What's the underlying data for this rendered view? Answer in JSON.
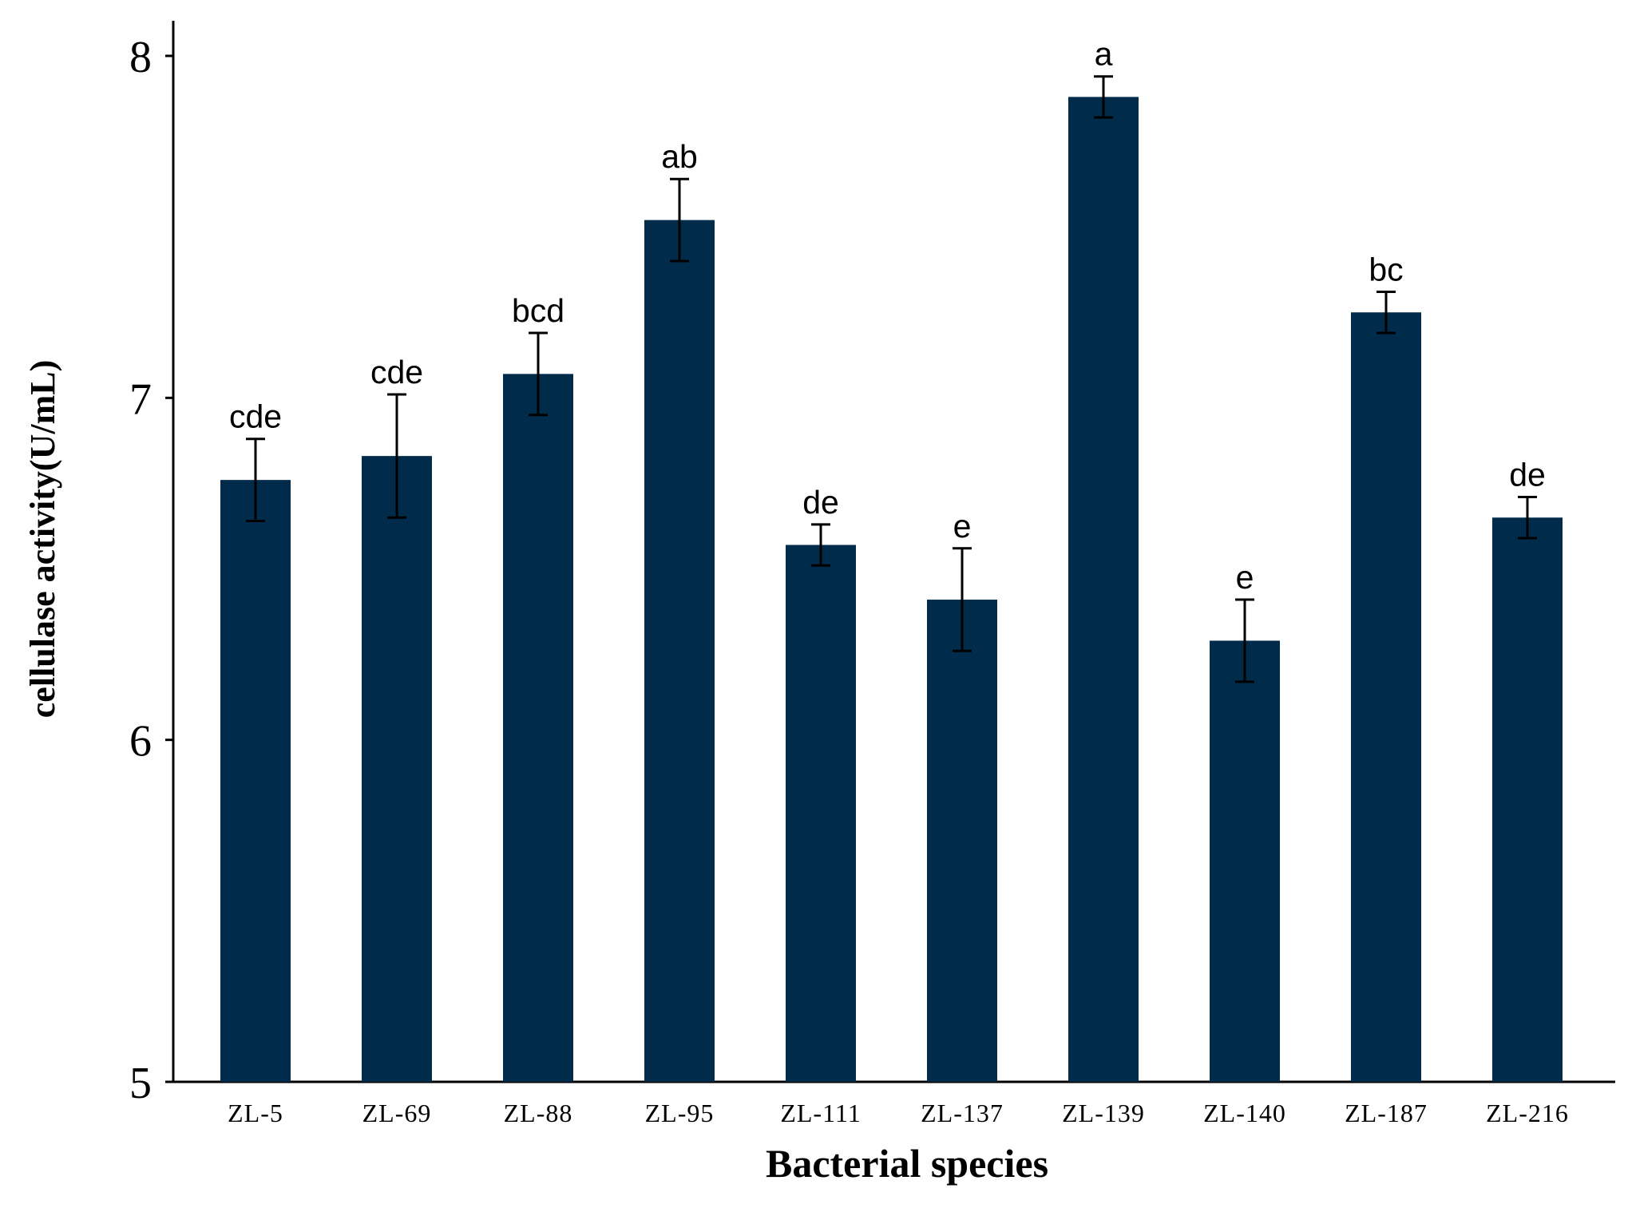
{
  "chart_data": {
    "type": "bar",
    "title": "",
    "xlabel": "Bacterial species",
    "ylabel": "cellulase activity(U/mL)",
    "ylim": [
      5,
      8
    ],
    "yticks": [
      "5",
      "6",
      "7",
      "8"
    ],
    "grid": false,
    "categories": [
      "ZL-5",
      "ZL-69",
      "ZL-88",
      "ZL-95",
      "ZL-111",
      "ZL-137",
      "ZL-139",
      "ZL-140",
      "ZL-187",
      "ZL-216"
    ],
    "series": [
      {
        "name": "cellulase activity",
        "color": "#002b4a",
        "values": [
          6.76,
          6.83,
          7.07,
          7.52,
          6.57,
          6.41,
          7.88,
          6.29,
          7.25,
          6.65
        ],
        "errors": [
          0.12,
          0.18,
          0.12,
          0.12,
          0.06,
          0.15,
          0.06,
          0.12,
          0.06,
          0.06
        ],
        "significance": [
          "cde",
          "cde",
          "bcd",
          "ab",
          "de",
          "e",
          "a",
          "e",
          "bc",
          "de"
        ]
      }
    ]
  }
}
